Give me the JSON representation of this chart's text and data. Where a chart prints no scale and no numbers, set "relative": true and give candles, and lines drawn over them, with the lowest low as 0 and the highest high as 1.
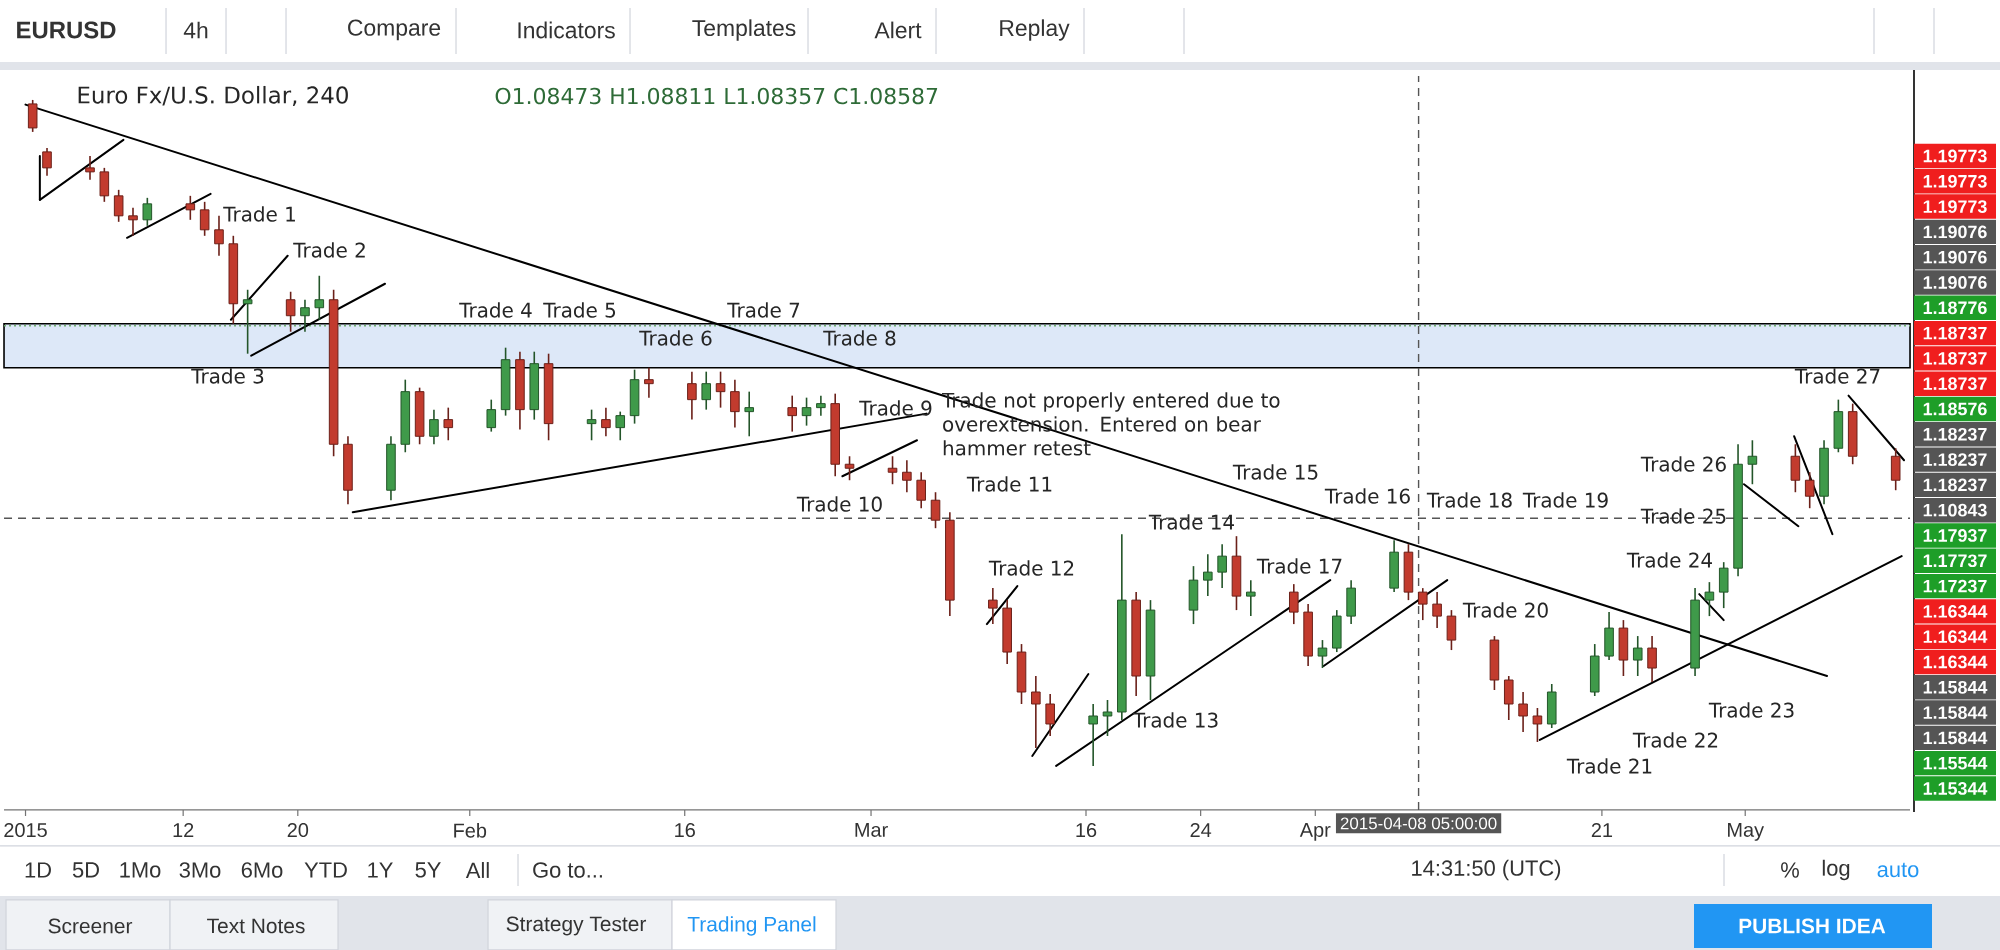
{
  "chart_data": {
    "type": "candlestick",
    "title": "Euro Fx/U.S. Dollar, 240",
    "subtitle": "O1.08473 H1.08811 L1.08357 C1.08587",
    "relative": true,
    "x": [
      "2015-01-01T12:00",
      "2015-01-02T12:00",
      "2015-01-05T12:00",
      "2015-01-06T12:00",
      "2015-01-07T12:00",
      "2015-01-08T12:00",
      "2015-01-09T12:00",
      "2015-01-12T12:00",
      "2015-01-13T12:00",
      "2015-01-14T12:00",
      "2015-01-15T12:00",
      "2015-01-16T12:00",
      "2015-01-19T12:00",
      "2015-01-20T12:00",
      "2015-01-21T12:00",
      "2015-01-22T12:00",
      "2015-01-23T12:00",
      "2015-01-26T12:00",
      "2015-01-27T12:00",
      "2015-01-28T12:00",
      "2015-01-29T12:00",
      "2015-01-30T12:00",
      "2015-02-02T12:00",
      "2015-02-03T12:00",
      "2015-02-04T12:00",
      "2015-02-05T12:00",
      "2015-02-06T12:00",
      "2015-02-09T12:00",
      "2015-02-10T12:00",
      "2015-02-11T12:00",
      "2015-02-12T12:00",
      "2015-02-13T12:00",
      "2015-02-16T12:00",
      "2015-02-17T12:00",
      "2015-02-18T12:00",
      "2015-02-19T12:00",
      "2015-02-20T12:00",
      "2015-02-23T12:00",
      "2015-02-24T12:00",
      "2015-02-25T12:00",
      "2015-02-26T12:00",
      "2015-02-27T12:00",
      "2015-03-02T12:00",
      "2015-03-03T12:00",
      "2015-03-04T12:00",
      "2015-03-05T12:00",
      "2015-03-06T12:00",
      "2015-03-09T12:00",
      "2015-03-10T12:00",
      "2015-03-11T12:00",
      "2015-03-12T12:00",
      "2015-03-13T12:00",
      "2015-03-16T12:00",
      "2015-03-17T12:00",
      "2015-03-18T12:00",
      "2015-03-19T12:00",
      "2015-03-20T12:00",
      "2015-03-23T12:00",
      "2015-03-24T12:00",
      "2015-03-25T12:00",
      "2015-03-26T12:00",
      "2015-03-27T12:00",
      "2015-03-30T12:00",
      "2015-03-31T12:00",
      "2015-04-01T12:00",
      "2015-04-02T12:00",
      "2015-04-03T12:00",
      "2015-04-06T12:00",
      "2015-04-07T12:00",
      "2015-04-08T12:00",
      "2015-04-09T12:00",
      "2015-04-10T12:00",
      "2015-04-13T12:00",
      "2015-04-14T12:00",
      "2015-04-15T12:00",
      "2015-04-16T12:00",
      "2015-04-17T12:00",
      "2015-04-20T12:00",
      "2015-04-21T12:00",
      "2015-04-22T12:00",
      "2015-04-23T12:00",
      "2015-04-24T12:00",
      "2015-04-27T12:00",
      "2015-04-28T12:00",
      "2015-04-29T12:00",
      "2015-04-30T12:00",
      "2015-05-01T12:00",
      "2015-05-04T12:00",
      "2015-05-05T12:00",
      "2015-05-06T12:00",
      "2015-05-07T12:00",
      "2015-05-08T12:00",
      "2015-05-11T12:00"
    ],
    "ohlc": [
      [
        0.994,
        1.0,
        0.952,
        0.958
      ],
      [
        0.922,
        0.928,
        0.886,
        0.898
      ],
      [
        0.898,
        0.916,
        0.88,
        0.892
      ],
      [
        0.892,
        0.898,
        0.847,
        0.856
      ],
      [
        0.856,
        0.865,
        0.817,
        0.826
      ],
      [
        0.826,
        0.838,
        0.796,
        0.82
      ],
      [
        0.82,
        0.853,
        0.811,
        0.844
      ],
      [
        0.844,
        0.856,
        0.82,
        0.835
      ],
      [
        0.835,
        0.847,
        0.796,
        0.805
      ],
      [
        0.805,
        0.826,
        0.766,
        0.784
      ],
      [
        0.784,
        0.796,
        0.664,
        0.694
      ],
      [
        0.694,
        0.715,
        0.619,
        0.7
      ],
      [
        0.7,
        0.712,
        0.652,
        0.676
      ],
      [
        0.676,
        0.7,
        0.652,
        0.688
      ],
      [
        0.688,
        0.736,
        0.67,
        0.7
      ],
      [
        0.7,
        0.715,
        0.465,
        0.483
      ],
      [
        0.483,
        0.495,
        0.393,
        0.414
      ],
      [
        0.414,
        0.495,
        0.399,
        0.483
      ],
      [
        0.483,
        0.58,
        0.471,
        0.562
      ],
      [
        0.562,
        0.568,
        0.483,
        0.495
      ],
      [
        0.495,
        0.535,
        0.483,
        0.52
      ],
      [
        0.52,
        0.538,
        0.489,
        0.508
      ],
      [
        0.508,
        0.55,
        0.502,
        0.535
      ],
      [
        0.535,
        0.628,
        0.526,
        0.61
      ],
      [
        0.61,
        0.622,
        0.505,
        0.535
      ],
      [
        0.535,
        0.622,
        0.52,
        0.604
      ],
      [
        0.604,
        0.619,
        0.489,
        0.514
      ],
      [
        0.514,
        0.535,
        0.489,
        0.52
      ],
      [
        0.52,
        0.538,
        0.495,
        0.508
      ],
      [
        0.508,
        0.532,
        0.489,
        0.526
      ],
      [
        0.526,
        0.595,
        0.514,
        0.58
      ],
      [
        0.58,
        0.598,
        0.553,
        0.574
      ],
      [
        0.574,
        0.592,
        0.52,
        0.55
      ],
      [
        0.55,
        0.592,
        0.535,
        0.574
      ],
      [
        0.574,
        0.592,
        0.538,
        0.562
      ],
      [
        0.562,
        0.58,
        0.508,
        0.532
      ],
      [
        0.532,
        0.562,
        0.495,
        0.538
      ],
      [
        0.538,
        0.556,
        0.502,
        0.526
      ],
      [
        0.526,
        0.553,
        0.511,
        0.538
      ],
      [
        0.538,
        0.556,
        0.526,
        0.544
      ],
      [
        0.544,
        0.559,
        0.435,
        0.453
      ],
      [
        0.453,
        0.465,
        0.429,
        0.447
      ],
      [
        0.447,
        0.465,
        0.423,
        0.441
      ],
      [
        0.441,
        0.459,
        0.411,
        0.429
      ],
      [
        0.429,
        0.441,
        0.387,
        0.399
      ],
      [
        0.399,
        0.411,
        0.357,
        0.369
      ],
      [
        0.369,
        0.381,
        0.225,
        0.249
      ],
      [
        0.249,
        0.267,
        0.213,
        0.237
      ],
      [
        0.237,
        0.249,
        0.153,
        0.171
      ],
      [
        0.171,
        0.183,
        0.093,
        0.111
      ],
      [
        0.111,
        0.135,
        0.027,
        0.093
      ],
      [
        0.093,
        0.108,
        0.045,
        0.063
      ],
      [
        0.063,
        0.093,
        0.0,
        0.075
      ],
      [
        0.075,
        0.099,
        0.045,
        0.081
      ],
      [
        0.081,
        0.348,
        0.069,
        0.249
      ],
      [
        0.249,
        0.261,
        0.105,
        0.135
      ],
      [
        0.135,
        0.249,
        0.099,
        0.234
      ],
      [
        0.234,
        0.3,
        0.213,
        0.279
      ],
      [
        0.279,
        0.318,
        0.255,
        0.291
      ],
      [
        0.291,
        0.333,
        0.267,
        0.315
      ],
      [
        0.315,
        0.345,
        0.234,
        0.255
      ],
      [
        0.255,
        0.279,
        0.225,
        0.261
      ],
      [
        0.261,
        0.273,
        0.213,
        0.231
      ],
      [
        0.231,
        0.243,
        0.15,
        0.165
      ],
      [
        0.165,
        0.189,
        0.147,
        0.177
      ],
      [
        0.177,
        0.234,
        0.171,
        0.225
      ],
      [
        0.225,
        0.279,
        0.213,
        0.267
      ],
      [
        0.267,
        0.339,
        0.261,
        0.321
      ],
      [
        0.321,
        0.333,
        0.249,
        0.261
      ],
      [
        0.261,
        0.267,
        0.219,
        0.243
      ],
      [
        0.243,
        0.261,
        0.207,
        0.225
      ],
      [
        0.225,
        0.234,
        0.174,
        0.189
      ],
      [
        0.189,
        0.195,
        0.114,
        0.129
      ],
      [
        0.129,
        0.135,
        0.069,
        0.093
      ],
      [
        0.093,
        0.111,
        0.051,
        0.075
      ],
      [
        0.075,
        0.087,
        0.036,
        0.063
      ],
      [
        0.063,
        0.123,
        0.057,
        0.111
      ],
      [
        0.111,
        0.183,
        0.105,
        0.165
      ],
      [
        0.165,
        0.231,
        0.159,
        0.207
      ],
      [
        0.207,
        0.219,
        0.135,
        0.159
      ],
      [
        0.159,
        0.195,
        0.135,
        0.177
      ],
      [
        0.177,
        0.195,
        0.126,
        0.147
      ],
      [
        0.147,
        0.267,
        0.135,
        0.249
      ],
      [
        0.249,
        0.276,
        0.225,
        0.261
      ],
      [
        0.261,
        0.306,
        0.237,
        0.297
      ],
      [
        0.297,
        0.483,
        0.285,
        0.453
      ],
      [
        0.453,
        0.489,
        0.423,
        0.465
      ],
      [
        0.465,
        0.483,
        0.411,
        0.429
      ],
      [
        0.429,
        0.441,
        0.387,
        0.405
      ],
      [
        0.405,
        0.489,
        0.393,
        0.477
      ],
      [
        0.477,
        0.55,
        0.471,
        0.532
      ],
      [
        0.532,
        0.544,
        0.453,
        0.465
      ],
      [
        0.465,
        0.477,
        0.414,
        0.429
      ]
    ],
    "colors": [
      "#c23b2e",
      "#c23b2e",
      "#c23b2e",
      "#c23b2e",
      "#c23b2e",
      "#c23b2e",
      "#3f9a4a",
      "#c23b2e",
      "#c23b2e",
      "#c23b2e",
      "#c23b2e",
      "#3f9a4a",
      "#c23b2e",
      "#3f9a4a",
      "#3f9a4a",
      "#c23b2e",
      "#c23b2e",
      "#3f9a4a",
      "#3f9a4a",
      "#c23b2e",
      "#3f9a4a",
      "#c23b2e",
      "#3f9a4a",
      "#3f9a4a",
      "#c23b2e",
      "#3f9a4a",
      "#c23b2e",
      "#3f9a4a",
      "#c23b2e",
      "#3f9a4a",
      "#3f9a4a",
      "#c23b2e",
      "#c23b2e",
      "#3f9a4a",
      "#c23b2e",
      "#c23b2e",
      "#3f9a4a",
      "#c23b2e",
      "#3f9a4a",
      "#3f9a4a",
      "#c23b2e",
      "#c23b2e",
      "#c23b2e",
      "#c23b2e",
      "#c23b2e",
      "#c23b2e",
      "#c23b2e",
      "#c23b2e",
      "#c23b2e",
      "#c23b2e",
      "#c23b2e",
      "#c23b2e",
      "#3f9a4a",
      "#3f9a4a",
      "#3f9a4a",
      "#c23b2e",
      "#3f9a4a",
      "#3f9a4a",
      "#3f9a4a",
      "#3f9a4a",
      "#c23b2e",
      "#3f9a4a",
      "#c23b2e",
      "#c23b2e",
      "#3f9a4a",
      "#3f9a4a",
      "#3f9a4a",
      "#3f9a4a",
      "#c23b2e",
      "#c23b2e",
      "#c23b2e",
      "#c23b2e",
      "#c23b2e",
      "#c23b2e",
      "#c23b2e",
      "#c23b2e",
      "#3f9a4a",
      "#3f9a4a",
      "#3f9a4a",
      "#c23b2e",
      "#3f9a4a",
      "#c23b2e",
      "#3f9a4a",
      "#3f9a4a",
      "#3f9a4a",
      "#3f9a4a",
      "#3f9a4a",
      "#c23b2e",
      "#c23b2e",
      "#3f9a4a",
      "#3f9a4a",
      "#c23b2e",
      "#c23b2e"
    ],
    "xlim": [
      "2014-12-30T12:00",
      "2015-05-12T12:00"
    ],
    "xticks": [
      {
        "value": "2015-01-01",
        "label": "2015"
      },
      {
        "value": "2015-01-12",
        "label": "12"
      },
      {
        "value": "2015-01-20",
        "label": "20"
      },
      {
        "value": "2015-02-01",
        "label": "Feb"
      },
      {
        "value": "2015-02-16",
        "label": "16"
      },
      {
        "value": "2015-03-01",
        "label": "Mar"
      },
      {
        "value": "2015-03-16",
        "label": "16"
      },
      {
        "value": "2015-03-24",
        "label": "24"
      },
      {
        "value": "2015-04-01",
        "label": "Apr"
      },
      {
        "value": "2015-04-21",
        "label": "21"
      },
      {
        "value": "2015-05-01",
        "label": "May"
      }
    ],
    "series": [
      {
        "type": "line",
        "x": [
          "2015-01-01T00:00",
          "2015-05-06T17:00"
        ],
        "values": [
          0.993,
          0.135
        ],
        "color": "#000000"
      },
      {
        "type": "line",
        "x": [
          "2015-01-23T20:00",
          "2015-03-04T21:00"
        ],
        "values": [
          0.381,
          0.529
        ],
        "color": "#000000"
      },
      {
        "type": "line",
        "x": [
          "2015-01-02T00:00",
          "2015-01-02T00:00"
        ],
        "values": [
          0.916,
          0.85
        ],
        "color": "#000000"
      },
      {
        "type": "line",
        "x": [
          "2015-01-02T00:00",
          "2015-01-07T20:00"
        ],
        "values": [
          0.85,
          0.94
        ],
        "color": "#000000"
      },
      {
        "type": "line",
        "x": [
          "2015-01-08T02:00",
          "2015-01-13T22:00"
        ],
        "values": [
          0.793,
          0.859
        ],
        "color": "#000000"
      },
      {
        "type": "line",
        "x": [
          "2015-01-15T08:00",
          "2015-01-19T07:00"
        ],
        "values": [
          0.67,
          0.766
        ],
        "color": "#000000"
      },
      {
        "type": "line",
        "x": [
          "2015-01-16T18:00",
          "2015-01-26T02:00"
        ],
        "values": [
          0.616,
          0.724
        ],
        "color": "#000000"
      },
      {
        "type": "line",
        "x": [
          "2015-02-27T00:00",
          "2015-03-04T05:00"
        ],
        "values": [
          0.435,
          0.489
        ],
        "color": "#000000"
      },
      {
        "type": "line",
        "x": [
          "2015-03-09T02:00",
          "2015-03-11T05:00"
        ],
        "values": [
          0.213,
          0.27
        ],
        "color": "#000000"
      },
      {
        "type": "line",
        "x": [
          "2015-03-12T06:00",
          "2015-03-16T04:00"
        ],
        "values": [
          0.015,
          0.138
        ],
        "color": "#000000"
      },
      {
        "type": "line",
        "x": [
          "2015-03-13T22:00",
          "2015-04-02T01:00"
        ],
        "values": [
          0.0,
          0.279
        ],
        "color": "#000000"
      },
      {
        "type": "line",
        "x": [
          "2015-04-01T14:00",
          "2015-04-10T05:00"
        ],
        "values": [
          0.15,
          0.279
        ],
        "color": "#000000"
      },
      {
        "type": "line",
        "x": [
          "2015-04-16T16:00",
          "2015-05-11T22:00"
        ],
        "values": [
          0.039,
          0.315
        ],
        "color": "#000000"
      },
      {
        "type": "line",
        "x": [
          "2015-04-27T19:00",
          "2015-04-29T12:00"
        ],
        "values": [
          0.258,
          0.219
        ],
        "color": "#000000"
      },
      {
        "type": "line",
        "x": [
          "2015-04-30T22:00",
          "2015-05-04T17:00"
        ],
        "values": [
          0.423,
          0.36
        ],
        "color": "#000000"
      },
      {
        "type": "line",
        "x": [
          "2015-05-04T10:00",
          "2015-05-07T02:00"
        ],
        "values": [
          0.495,
          0.348
        ],
        "color": "#000000"
      },
      {
        "type": "line",
        "x": [
          "2015-05-08T05:00",
          "2015-05-12T02:00"
        ],
        "values": [
          0.556,
          0.459
        ],
        "color": "#000000"
      }
    ],
    "ref_lines": [
      {
        "axis": "x",
        "value": "2015-04-08T05:00",
        "label": "2015-04-08 05:00:00",
        "color": "#555555",
        "line_style": "dashed"
      },
      {
        "axis": "y",
        "value": 0.372,
        "color": "#555555",
        "line_style": "dashed"
      },
      {
        "axis": "y",
        "value": 0.661,
        "color": "#6fae6f",
        "line_style": "dotted"
      }
    ],
    "bands": [
      {
        "axis": "y",
        "from": 0.598,
        "to": 0.664,
        "color": "#dde8f8"
      }
    ],
    "annotations": [
      "Trade 1",
      "Trade 2",
      "Trade 3",
      "Trade 4",
      "Trade 5",
      "Trade 6",
      "Trade 7",
      "Trade 8",
      "Trade 9",
      "Trade 10",
      "Trade 11",
      "Trade 12",
      "Trade 13",
      "Trade 14",
      "Trade 15",
      "Trade 16",
      "Trade 17",
      "Trade 18",
      "Trade 19",
      "Trade 20",
      "Trade 21",
      "Trade 22",
      "Trade 23",
      "Trade 24",
      "Trade 25",
      "Trade 26",
      "Trade 27",
      "Trade not properly entered due to overextension. Entered on bear hammer retest",
      "EURUSD",
      "4h",
      "Compare",
      "Indicators",
      "Templates",
      "Alert",
      "Replay",
      "1D",
      "5D",
      "1Mo",
      "3Mo",
      "6Mo",
      "YTD",
      "1Y",
      "5Y",
      "All",
      "Go to...",
      "14:31:50 (UTC)",
      "%",
      "log",
      "auto",
      "Screener",
      "Text Notes",
      "Strategy Tester",
      "Trading Panel",
      "PUBLISH IDEA",
      "1.19773",
      "1.19773",
      "1.19773",
      "1.19076",
      "1.19076",
      "1.19076",
      "1.18776",
      "1.18737",
      "1.18737",
      "1.18737",
      "1.18576",
      "1.18237",
      "1.18237",
      "1.18237",
      "1.10843",
      "1.17937",
      "1.17737",
      "1.17237",
      "1.16344",
      "1.16344",
      "1.16344",
      "1.15844",
      "1.15844",
      "1.15844",
      "1.15544",
      "1.15344"
    ]
  }
}
